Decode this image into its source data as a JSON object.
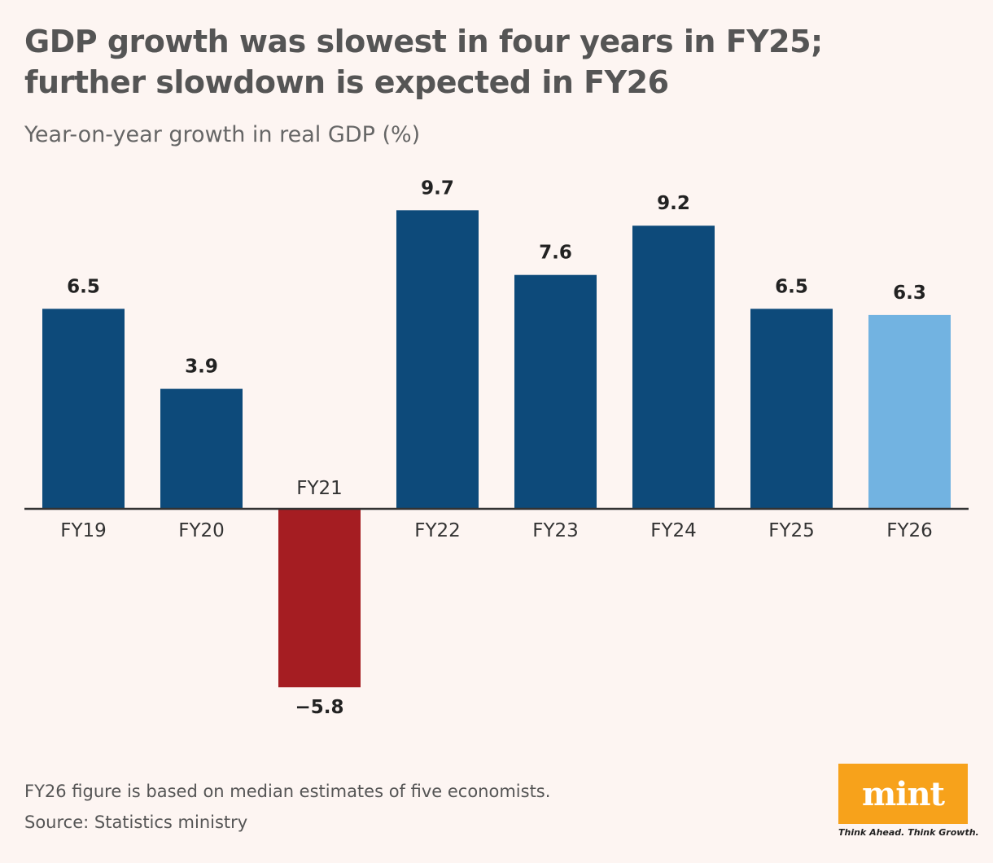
{
  "header": {
    "title": "GDP growth was slowest in four years in FY25; further slowdown is expected in FY26",
    "subtitle": "Year-on-year growth in real GDP (%)"
  },
  "footer": {
    "note": "FY26 figure is based on median estimates of five economists.",
    "source": "Source: Statistics ministry"
  },
  "brand": {
    "logo_text": "mint",
    "tagline": "Think Ahead. Think Growth.",
    "logo_color": "#f7a21b"
  },
  "colors": {
    "positive": "#0d4a7a",
    "negative": "#a51d22",
    "estimate": "#72b3e1",
    "axis": "#333333"
  },
  "chart_data": {
    "type": "bar",
    "title": "GDP growth was slowest in four years in FY25; further slowdown is expected in FY26",
    "ylabel": "Year-on-year growth in real GDP (%)",
    "xlabel": "",
    "categories": [
      "FY19",
      "FY20",
      "FY21",
      "FY22",
      "FY23",
      "FY24",
      "FY25",
      "FY26"
    ],
    "values": [
      6.5,
      3.9,
      -5.8,
      9.7,
      7.6,
      9.2,
      6.5,
      6.3
    ],
    "value_labels": [
      "6.5",
      "3.9",
      "−5.8",
      "9.7",
      "7.6",
      "9.2",
      "6.5",
      "6.3"
    ],
    "estimate_categories": [
      "FY26"
    ],
    "ylim": [
      -5.8,
      9.7
    ],
    "grid": false
  }
}
